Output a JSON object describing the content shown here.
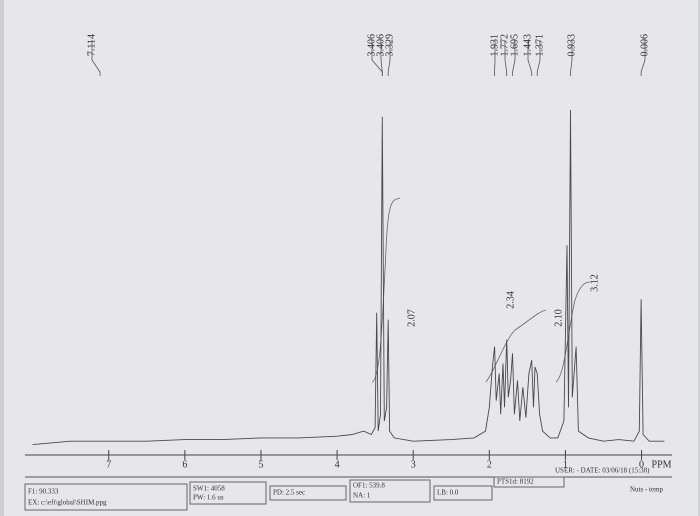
{
  "chart_data": {
    "type": "line",
    "x": [
      8.0,
      7.5,
      7.0,
      6.5,
      6.0,
      5.5,
      5.0,
      4.5,
      4.0,
      3.8,
      3.65,
      3.55,
      3.5,
      3.48,
      3.46,
      3.43,
      3.406,
      3.38,
      3.35,
      3.329,
      3.31,
      3.25,
      3.0,
      2.5,
      2.2,
      2.05,
      2.0,
      1.96,
      1.931,
      1.91,
      1.87,
      1.85,
      1.82,
      1.8,
      1.772,
      1.75,
      1.72,
      1.695,
      1.67,
      1.63,
      1.6,
      1.56,
      1.52,
      1.48,
      1.443,
      1.42,
      1.4,
      1.371,
      1.34,
      1.3,
      1.2,
      1.1,
      1.02,
      0.98,
      0.96,
      0.933,
      0.91,
      0.86,
      0.83,
      0.7,
      0.5,
      0.3,
      0.1,
      0.03,
      0.006,
      -0.02,
      -0.1,
      -0.3
    ],
    "values": [
      1,
      2,
      2,
      2,
      2.5,
      2.5,
      3,
      3,
      3.5,
      4,
      5,
      4,
      6,
      40,
      5,
      10,
      98,
      8,
      12,
      38,
      5,
      3,
      2,
      2.5,
      3,
      5,
      12,
      24,
      30,
      14,
      22,
      10,
      25,
      12,
      32,
      15,
      20,
      28,
      10,
      20,
      8,
      18,
      9,
      22,
      26,
      12,
      24,
      22,
      10,
      5,
      3,
      3,
      8,
      60,
      12,
      100,
      15,
      30,
      5,
      3,
      2,
      2.5,
      2,
      5,
      44,
      4,
      2,
      2
    ],
    "color": "#4a4a4a",
    "xlim": [
      8.1,
      -0.4
    ],
    "ylim": [
      0,
      100
    ],
    "xticks": [
      7,
      6,
      5,
      4,
      3,
      2,
      1,
      0
    ],
    "x_unit": "PPM",
    "peak_labels": [
      "7.114",
      "3.406",
      "3.406",
      "3.329",
      "1.931",
      "1.772",
      "1.695",
      "1.443",
      "1.371",
      "0.933",
      "0.006"
    ],
    "integrals": [
      "2.07",
      "2.34",
      "2.10",
      "3.12"
    ]
  },
  "footer": {
    "user_date": "USER: - DATE: 03/06/18 (15:38)",
    "probe": "Nuts - temp",
    "f1": "F1: 90.333",
    "ex": "EX: c:\\eft\\global\\SHIM.ppg",
    "sw1": "SW1: 4058",
    "pw": "PW: 1.6 us",
    "pd": "PD: 2.5 sec",
    "of1": "OF1: 539.8",
    "na": "NA: 1",
    "lb": "LB: 0.0",
    "pts": "PTS1d: 8192"
  }
}
